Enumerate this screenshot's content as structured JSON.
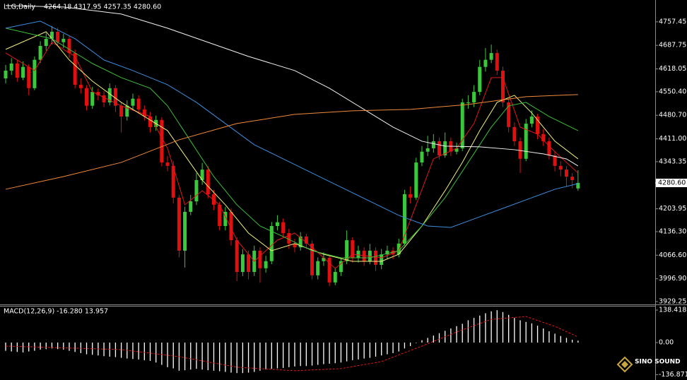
{
  "chart_data": {
    "type": "candlestick",
    "title": "LLG,Daily",
    "ohlc_label": "4264.18 4317.95 4257.35 4280.60",
    "last_price_label": "4280.60",
    "brand": "SINO SOUND",
    "up_color": "#3cc83c",
    "down_color": "#e01010",
    "ylim": [
      3923,
      4822
    ],
    "yticks": [
      4757.45,
      4687.75,
      4618.05,
      {
        "value": 4550.4,
        "label": "4550.40"
      },
      {
        "value": 4480.7,
        "label": "4480.70"
      },
      {
        "value": 4411,
        "label": "4411.00"
      },
      4343.35,
      4203.95,
      {
        "value": 4136.3,
        "label": "4136.30"
      },
      {
        "value": 4066.6,
        "label": "4066.60"
      },
      {
        "value": 3996.9,
        "label": "3996.90"
      },
      3929.25
    ],
    "open": [
      4590,
      4613,
      4634,
      4592,
      4624,
      4561,
      4645,
      4686,
      4707,
      4728,
      4697,
      4707,
      4665,
      4571,
      4561,
      4509,
      4550,
      4540,
      4519,
      4561,
      4509,
      4477,
      4509,
      4530,
      4498,
      4477,
      4446,
      4467,
      4341,
      4331,
      4237,
      4080,
      4195,
      4226,
      4289,
      4320,
      4247,
      4216,
      4153,
      4195,
      4111,
      4017,
      4069,
      4017,
      4080,
      4028,
      4049,
      4153,
      4164,
      4132,
      4101,
      4090,
      4122,
      4101,
      4007,
      4049,
      4059,
      3986,
      4017,
      4049,
      4111,
      4059,
      4080,
      4049,
      4080,
      4038,
      4069,
      4080,
      4069,
      4101,
      4247,
      4237,
      4341,
      4373,
      4383,
      4404,
      4362,
      4404,
      4373,
      4383,
      4519,
      4519,
      4550,
      4624,
      4645,
      4665,
      4613,
      4519,
      4446,
      4404,
      4352,
      4456,
      4477,
      4425,
      4404,
      4362,
      4331,
      4320,
      4299,
      4264.18
    ],
    "high": [
      4630,
      4650,
      4645,
      4640,
      4632,
      4655,
      4700,
      4725,
      4745,
      4740,
      4722,
      4715,
      4675,
      4590,
      4570,
      4565,
      4560,
      4552,
      4575,
      4570,
      4520,
      4525,
      4545,
      4540,
      4510,
      4490,
      4480,
      4475,
      4360,
      4345,
      4245,
      4210,
      4245,
      4310,
      4340,
      4330,
      4260,
      4225,
      4210,
      4205,
      4120,
      4085,
      4080,
      4095,
      4090,
      4065,
      4165,
      4185,
      4175,
      4145,
      4115,
      4135,
      4130,
      4110,
      4060,
      4075,
      4065,
      4030,
      4060,
      4140,
      4120,
      4095,
      4090,
      4100,
      4090,
      4085,
      4095,
      4090,
      4115,
      4260,
      4270,
      4355,
      4390,
      4420,
      4425,
      4415,
      4430,
      4415,
      4400,
      4530,
      4540,
      4570,
      4645,
      4680,
      4690,
      4675,
      4625,
      4530,
      4460,
      4415,
      4470,
      4495,
      4485,
      4440,
      4415,
      4375,
      4345,
      4330,
      4310,
      4317.95
    ],
    "low": [
      4575,
      4600,
      4580,
      4585,
      4540,
      4555,
      4635,
      4672,
      4690,
      4685,
      4680,
      4650,
      4560,
      4545,
      4495,
      4500,
      4525,
      4505,
      4510,
      4490,
      4430,
      4465,
      4495,
      4485,
      4465,
      4430,
      4435,
      4330,
      4315,
      4220,
      4060,
      4030,
      4185,
      4215,
      4275,
      4235,
      4200,
      4140,
      4140,
      4095,
      3990,
      4005,
      3995,
      4005,
      3985,
      4015,
      4040,
      4140,
      4120,
      4085,
      4075,
      4080,
      4085,
      3995,
      3995,
      4035,
      3975,
      3978,
      4005,
      4040,
      4045,
      4045,
      4035,
      4040,
      4020,
      4025,
      4055,
      4055,
      4060,
      4095,
      4220,
      4230,
      4330,
      4360,
      4370,
      4350,
      4355,
      4360,
      4365,
      4375,
      4500,
      4505,
      4540,
      4610,
      4635,
      4600,
      4505,
      4430,
      4390,
      4310,
      4345,
      4445,
      4410,
      4390,
      4350,
      4315,
      4300,
      4270,
      4265,
      4257.35
    ],
    "close": [
      4613,
      4634,
      4592,
      4624,
      4561,
      4645,
      4686,
      4707,
      4728,
      4697,
      4707,
      4665,
      4571,
      4561,
      4509,
      4550,
      4540,
      4519,
      4561,
      4509,
      4477,
      4509,
      4530,
      4498,
      4477,
      4446,
      4467,
      4341,
      4331,
      4237,
      4080,
      4195,
      4226,
      4289,
      4320,
      4247,
      4216,
      4153,
      4195,
      4111,
      4017,
      4069,
      4017,
      4080,
      4028,
      4049,
      4153,
      4164,
      4132,
      4101,
      4090,
      4122,
      4101,
      4007,
      4049,
      4059,
      3986,
      4017,
      4049,
      4111,
      4059,
      4080,
      4049,
      4080,
      4038,
      4069,
      4080,
      4069,
      4101,
      4247,
      4237,
      4341,
      4373,
      4383,
      4404,
      4362,
      4404,
      4373,
      4383,
      4519,
      4519,
      4550,
      4624,
      4645,
      4665,
      4613,
      4519,
      4446,
      4404,
      4352,
      4456,
      4477,
      4425,
      4404,
      4362,
      4331,
      4320,
      4299,
      4289,
      4280.6
    ],
    "lines": [
      {
        "color": "#e01818",
        "x": [
          0,
          5,
          8,
          12,
          15,
          20,
          25,
          28,
          31,
          34,
          37,
          40,
          43,
          47,
          50,
          53,
          57,
          60,
          65,
          68,
          71,
          74,
          78,
          81,
          84,
          86,
          89,
          92,
          95,
          99
        ],
        "values": [
          4665.4,
          4613.1,
          4696.8,
          4655.0,
          4550.4,
          4508.6,
          4477.2,
          4383.1,
          4215.8,
          4257.6,
          4215.8,
          4111.2,
          4048.5,
          4111.2,
          4132.1,
          4090.3,
          4027.5,
          4069.4,
          4058.9,
          4079.9,
          4215.8,
          4351.7,
          4383.1,
          4456.3,
          4592.2,
          4592.2,
          4445.8,
          4424.9,
          4372.6,
          4309.9
        ]
      },
      {
        "color": "#f0f07a",
        "x": [
          0,
          7,
          11,
          15,
          20,
          25,
          28,
          31,
          34,
          38,
          42,
          46,
          50,
          55,
          60,
          65,
          68,
          72,
          76,
          79,
          82,
          85,
          88,
          91,
          95,
          99
        ],
        "values": [
          4675.9,
          4728.2,
          4644.5,
          4581.8,
          4519.0,
          4466.7,
          4435.4,
          4362.2,
          4289.0,
          4215.8,
          4132.1,
          4079.9,
          4100.8,
          4069.4,
          4048.5,
          4048.5,
          4069.4,
          4153.0,
          4257.6,
          4341.3,
          4435.4,
          4519.0,
          4539.9,
          4487.7,
          4404.0,
          4351.7
        ]
      },
      {
        "color": "#3bbf3b",
        "x": [
          0,
          8,
          15,
          20,
          25,
          28,
          32,
          36,
          40,
          44,
          48,
          53,
          58,
          63,
          68,
          72,
          76,
          80,
          84,
          87,
          90,
          94,
          99
        ],
        "values": [
          4738.6,
          4707.3,
          4634.1,
          4592.2,
          4560.8,
          4508.6,
          4404.0,
          4299.4,
          4215.8,
          4153.0,
          4121.7,
          4079.9,
          4058.9,
          4058.9,
          4079.9,
          4153.0,
          4236.7,
          4341.3,
          4445.8,
          4508.6,
          4519.0,
          4477.2,
          4435.4
        ]
      },
      {
        "color": "#3a8ee0",
        "x": [
          0,
          6,
          12,
          17,
          22,
          28,
          33,
          38,
          43,
          48,
          53,
          58,
          63,
          68,
          73,
          77,
          81,
          86,
          91,
          95,
          99
        ],
        "values": [
          4738.6,
          4759.5,
          4707.3,
          4644.5,
          4613.1,
          4571.3,
          4519.0,
          4456.3,
          4393.5,
          4351.7,
          4309.9,
          4268.0,
          4226.2,
          4184.4,
          4153.0,
          4148.8,
          4174.0,
          4205.3,
          4236.7,
          4261.8,
          4278.5
        ]
      },
      {
        "color": "#f2f2f2",
        "x": [
          0,
          10,
          20,
          28,
          35,
          42,
          50,
          56,
          62,
          67,
          72,
          76,
          82,
          88,
          93,
          97,
          99
        ],
        "values": [
          4805.5,
          4801.4,
          4780.5,
          4738.6,
          4696.8,
          4655.0,
          4613.1,
          4560.8,
          4498.1,
          4445.8,
          4404.0,
          4389.4,
          4387.3,
          4378.9,
          4366.4,
          4351.7,
          4330.8
        ]
      },
      {
        "color": "#f08a3a",
        "x": [
          0,
          10,
          20,
          30,
          40,
          50,
          60,
          70,
          80,
          90,
          99
        ],
        "values": [
          4261.8,
          4299.4,
          4341.3,
          4408.2,
          4456.3,
          4483.5,
          4494.0,
          4498.1,
          4512.8,
          4535.8,
          4542.0
        ]
      }
    ],
    "macd": {
      "title": "MACD(12,26,9) -16.280 13.957",
      "ylim": [
        -156.5,
        156.5
      ],
      "yticks": [
        138.418,
        {
          "value": 0,
          "label": "0.00"
        },
        -136.871
      ],
      "histogram_color": "#ffffff",
      "histogram": [
        -35,
        -38,
        -40,
        -42,
        -38,
        -35,
        -30,
        -28,
        -25,
        -28,
        -30,
        -35,
        -40,
        -45,
        -50,
        -52,
        -55,
        -58,
        -60,
        -62,
        -65,
        -68,
        -70,
        -72,
        -75,
        -78,
        -85,
        -95,
        -105,
        -110,
        -120,
        -118,
        -115,
        -112,
        -115,
        -118,
        -120,
        -122,
        -125,
        -128,
        -130,
        -130,
        -128,
        -125,
        -120,
        -115,
        -112,
        -110,
        -108,
        -105,
        -102,
        -100,
        -100,
        -98,
        -95,
        -92,
        -90,
        -88,
        -85,
        -80,
        -75,
        -72,
        -68,
        -65,
        -60,
        -55,
        -50,
        -45,
        -38,
        -25,
        -15,
        -2,
        10,
        20,
        30,
        40,
        50,
        60,
        70,
        80,
        95,
        105,
        115,
        125,
        133,
        138,
        130,
        118,
        105,
        95,
        88,
        82,
        72,
        60,
        48,
        38,
        28,
        20,
        12,
        8
      ],
      "signal": {
        "color": "#e01818",
        "x": [
          0,
          20,
          30,
          40,
          50,
          58,
          65,
          72,
          78,
          84,
          90,
          95,
          99
        ],
        "values": [
          -15,
          -30,
          -60,
          -105,
          -120,
          -111,
          -81,
          -15,
          45,
          99,
          111,
          69,
          24
        ]
      }
    }
  }
}
